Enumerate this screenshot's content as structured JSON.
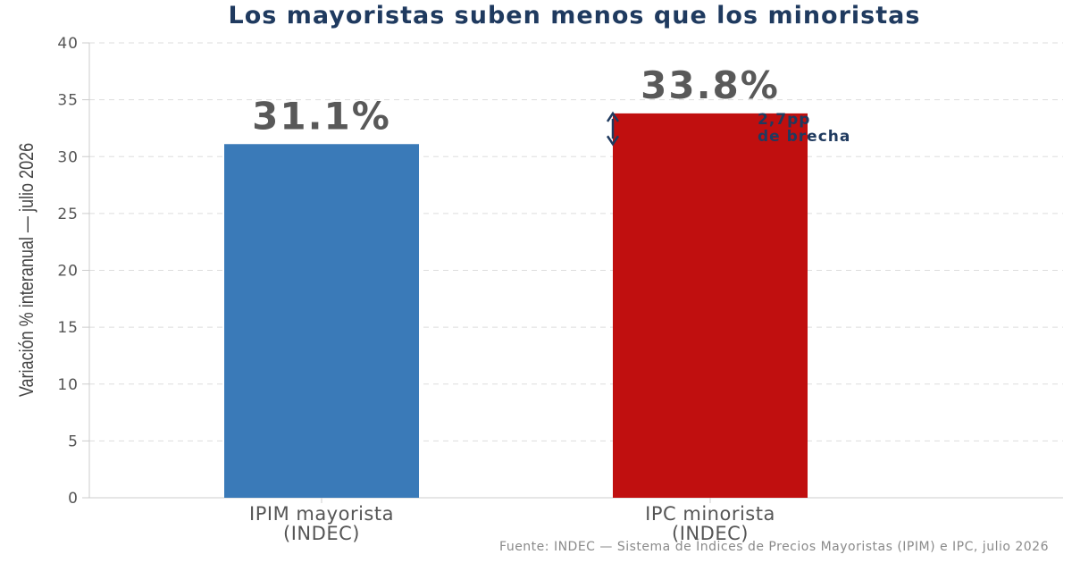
{
  "title": "Los mayoristas suben menos que los minoristas",
  "source": "Fuente: INDEC — Sistema de Índices de Precios Mayoristas (IPIM) e IPC, julio 2026",
  "colors": {
    "title": "#1f3a5f",
    "annotation": "#1f3a5f",
    "grid": "#dddddd",
    "axis": "#cccccc"
  },
  "chart_data": {
    "type": "bar",
    "categories": [
      [
        "IPIM mayorista",
        "(INDEC)"
      ],
      [
        "IPC minorista",
        "(INDEC)"
      ]
    ],
    "values": [
      31.1,
      33.8
    ],
    "value_labels": [
      "31.1%",
      "33.8%"
    ],
    "bar_colors": [
      "#3a7ab8",
      "#c00f0f"
    ],
    "xlabel": "",
    "ylabel": "Variación % interanual — julio 2026",
    "ylim": [
      0,
      40
    ],
    "yticks": [
      0,
      5,
      10,
      15,
      20,
      25,
      30,
      35,
      40
    ],
    "grid": true,
    "annotation": {
      "lines": [
        "2,7pp",
        "de brecha"
      ],
      "from": 31.1,
      "to": 33.8,
      "icon": "double-arrow-vertical-icon"
    }
  }
}
